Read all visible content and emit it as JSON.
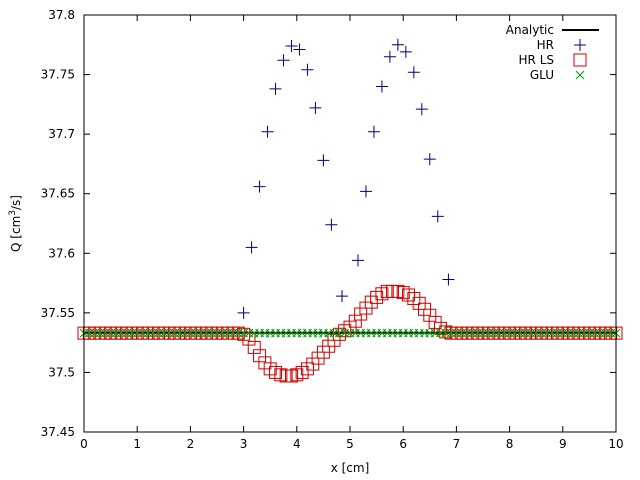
{
  "chart_data": {
    "type": "scatter",
    "xlabel": "x [cm]",
    "ylabel": {
      "prefix": "Q [cm",
      "sup": "3",
      "suffix": "/s]"
    },
    "xlim": [
      0,
      10
    ],
    "ylim": [
      37.45,
      37.8
    ],
    "xticks": [
      "0",
      "1",
      "2",
      "3",
      "4",
      "5",
      "6",
      "7",
      "8",
      "9",
      "10"
    ],
    "yticks": [
      "37.45",
      "37.5",
      "37.55",
      "37.6",
      "37.65",
      "37.7",
      "37.75",
      "37.8"
    ],
    "grid": false,
    "legend_position": "top-right",
    "series": [
      {
        "name": "Analytic",
        "style": "line",
        "color": "#000000",
        "x": [
          0,
          10
        ],
        "y": [
          37.5333,
          37.5333
        ]
      },
      {
        "name": "HR",
        "style": "plus",
        "color": "#000080",
        "x": [
          3.0,
          3.15,
          3.3,
          3.45,
          3.6,
          3.75,
          3.9,
          4.05,
          4.2,
          4.35,
          4.5,
          4.65,
          4.85,
          5.15,
          5.3,
          5.45,
          5.6,
          5.75,
          5.9,
          6.05,
          6.2,
          6.35,
          6.5,
          6.65,
          6.85
        ],
        "y": [
          37.55,
          37.605,
          37.656,
          37.702,
          37.738,
          37.762,
          37.774,
          37.771,
          37.754,
          37.722,
          37.678,
          37.624,
          37.564,
          37.594,
          37.652,
          37.702,
          37.74,
          37.765,
          37.775,
          37.769,
          37.752,
          37.721,
          37.679,
          37.631,
          37.578
        ]
      },
      {
        "name": "HR LS",
        "style": "square",
        "color": "#cc0000",
        "x": [
          0.0,
          0.1,
          0.2,
          0.3,
          0.4,
          0.5,
          0.6,
          0.7,
          0.8,
          0.9,
          1.0,
          1.1,
          1.2,
          1.3,
          1.4,
          1.5,
          1.6,
          1.7,
          1.8,
          1.9,
          2.0,
          2.1,
          2.2,
          2.3,
          2.4,
          2.5,
          2.6,
          2.7,
          2.8,
          2.9,
          3.0,
          3.1,
          3.2,
          3.3,
          3.4,
          3.5,
          3.6,
          3.7,
          3.8,
          3.9,
          4.0,
          4.1,
          4.2,
          4.3,
          4.4,
          4.5,
          4.6,
          4.7,
          4.8,
          4.9,
          5.0,
          5.1,
          5.2,
          5.3,
          5.4,
          5.5,
          5.6,
          5.7,
          5.8,
          5.9,
          6.0,
          6.1,
          6.2,
          6.3,
          6.4,
          6.5,
          6.6,
          6.7,
          6.8,
          6.9,
          7.0,
          7.1,
          7.2,
          7.3,
          7.4,
          7.5,
          7.6,
          7.7,
          7.8,
          7.9,
          8.0,
          8.1,
          8.2,
          8.3,
          8.4,
          8.5,
          8.6,
          8.7,
          8.8,
          8.9,
          9.0,
          9.1,
          9.2,
          9.3,
          9.4,
          9.5,
          9.6,
          9.7,
          9.8,
          9.9,
          10.0
        ],
        "y": [
          37.533,
          37.533,
          37.533,
          37.533,
          37.533,
          37.533,
          37.533,
          37.533,
          37.533,
          37.533,
          37.533,
          37.533,
          37.533,
          37.533,
          37.533,
          37.533,
          37.533,
          37.533,
          37.533,
          37.533,
          37.533,
          37.533,
          37.533,
          37.533,
          37.533,
          37.533,
          37.533,
          37.533,
          37.533,
          37.533,
          37.532,
          37.528,
          37.521,
          37.514,
          37.508,
          37.503,
          37.5,
          37.498,
          37.497,
          37.497,
          37.498,
          37.5,
          37.503,
          37.507,
          37.512,
          37.517,
          37.522,
          37.527,
          37.532,
          37.535,
          37.538,
          37.543,
          37.549,
          37.554,
          37.559,
          37.563,
          37.566,
          37.568,
          37.568,
          37.568,
          37.567,
          37.565,
          37.562,
          37.558,
          37.553,
          37.548,
          37.542,
          37.537,
          37.534,
          37.533,
          37.533,
          37.533,
          37.533,
          37.533,
          37.533,
          37.533,
          37.533,
          37.533,
          37.533,
          37.533,
          37.533,
          37.533,
          37.533,
          37.533,
          37.533,
          37.533,
          37.533,
          37.533,
          37.533,
          37.533,
          37.533,
          37.533,
          37.533,
          37.533,
          37.533,
          37.533,
          37.533,
          37.533,
          37.533,
          37.533,
          37.533
        ]
      },
      {
        "name": "GLU",
        "style": "cross",
        "color": "#00a000",
        "x": [
          0.0,
          0.1,
          0.2,
          0.3,
          0.4,
          0.5,
          0.6,
          0.7,
          0.8,
          0.9,
          1.0,
          1.1,
          1.2,
          1.3,
          1.4,
          1.5,
          1.6,
          1.7,
          1.8,
          1.9,
          2.0,
          2.1,
          2.2,
          2.3,
          2.4,
          2.5,
          2.6,
          2.7,
          2.8,
          2.9,
          3.0,
          3.1,
          3.2,
          3.3,
          3.4,
          3.5,
          3.6,
          3.7,
          3.8,
          3.9,
          4.0,
          4.1,
          4.2,
          4.3,
          4.4,
          4.5,
          4.6,
          4.7,
          4.8,
          4.9,
          5.0,
          5.1,
          5.2,
          5.3,
          5.4,
          5.5,
          5.6,
          5.7,
          5.8,
          5.9,
          6.0,
          6.1,
          6.2,
          6.3,
          6.4,
          6.5,
          6.6,
          6.7,
          6.8,
          6.9,
          7.0,
          7.1,
          7.2,
          7.3,
          7.4,
          7.5,
          7.6,
          7.7,
          7.8,
          7.9,
          8.0,
          8.1,
          8.2,
          8.3,
          8.4,
          8.5,
          8.6,
          8.7,
          8.8,
          8.9,
          9.0,
          9.1,
          9.2,
          9.3,
          9.4,
          9.5,
          9.6,
          9.7,
          9.8,
          9.9,
          10.0
        ],
        "y": [
          37.533,
          37.533,
          37.533,
          37.533,
          37.533,
          37.533,
          37.533,
          37.533,
          37.533,
          37.533,
          37.533,
          37.533,
          37.533,
          37.533,
          37.533,
          37.533,
          37.533,
          37.533,
          37.533,
          37.533,
          37.533,
          37.533,
          37.533,
          37.533,
          37.533,
          37.533,
          37.533,
          37.533,
          37.533,
          37.533,
          37.533,
          37.533,
          37.533,
          37.533,
          37.533,
          37.533,
          37.533,
          37.533,
          37.533,
          37.533,
          37.533,
          37.533,
          37.533,
          37.533,
          37.533,
          37.533,
          37.533,
          37.533,
          37.533,
          37.533,
          37.533,
          37.533,
          37.533,
          37.533,
          37.533,
          37.533,
          37.533,
          37.533,
          37.533,
          37.533,
          37.533,
          37.533,
          37.533,
          37.533,
          37.533,
          37.533,
          37.533,
          37.533,
          37.533,
          37.533,
          37.533,
          37.533,
          37.533,
          37.533,
          37.533,
          37.533,
          37.533,
          37.533,
          37.533,
          37.533,
          37.533,
          37.533,
          37.533,
          37.533,
          37.533,
          37.533,
          37.533,
          37.533,
          37.533,
          37.533,
          37.533,
          37.533,
          37.533,
          37.533,
          37.533,
          37.533,
          37.533,
          37.533,
          37.533,
          37.533,
          37.533
        ]
      }
    ]
  }
}
